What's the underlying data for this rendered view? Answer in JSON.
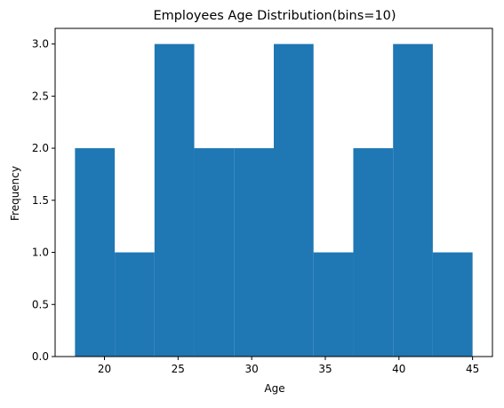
{
  "chart_data": {
    "type": "bar",
    "title": "Employees Age Distribution(bins=10)",
    "xlabel": "Age",
    "ylabel": "Frequency",
    "bin_edges": [
      18,
      20.7,
      23.4,
      26.1,
      28.8,
      31.5,
      34.2,
      36.9,
      39.6,
      42.3,
      45
    ],
    "values": [
      2,
      1,
      3,
      2,
      2,
      3,
      1,
      2,
      3,
      1
    ],
    "xlim": [
      16.65,
      46.35
    ],
    "ylim": [
      0,
      3.15
    ],
    "xticks": [
      20,
      25,
      30,
      35,
      40,
      45
    ],
    "xtick_labels": [
      "20",
      "25",
      "30",
      "35",
      "40",
      "45"
    ],
    "yticks": [
      0,
      0.5,
      1,
      1.5,
      2,
      2.5,
      3
    ],
    "ytick_labels": [
      "0.0",
      "0.5",
      "1.0",
      "1.5",
      "2.0",
      "2.5",
      "3.0"
    ],
    "color": "#1f77b4",
    "grid": false,
    "legend": "none"
  }
}
